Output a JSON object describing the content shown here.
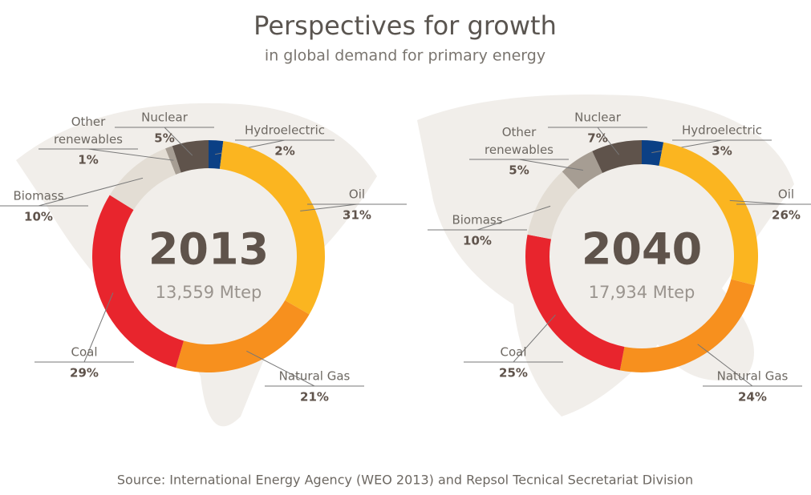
{
  "title": "Perspectives for growth",
  "subtitle": "in global demand for primary energy",
  "source": "Source: International Energy Agency (WEO 2013) and Repsol Tecnical Secretariat Division",
  "chart_data": [
    {
      "type": "pie",
      "donut": true,
      "center_label": "2013",
      "total_label": "13,559 Mtep",
      "categories": [
        "Hydroelectric",
        "Oil",
        "Natural Gas",
        "Coal",
        "Biomass",
        "Other renewables",
        "Nuclear"
      ],
      "values": [
        2,
        31,
        21,
        29,
        10,
        1,
        5
      ],
      "value_labels": [
        "2%",
        "31%",
        "21%",
        "29%",
        "10%",
        "1%",
        "5%"
      ],
      "colors": [
        "#0b4085",
        "#fbb520",
        "#f7901e",
        "#e8252d",
        "#e3ddd4",
        "#a69d93",
        "#5f534b"
      ]
    },
    {
      "type": "pie",
      "donut": true,
      "center_label": "2040",
      "total_label": "17,934 Mtep",
      "categories": [
        "Hydroelectric",
        "Oil",
        "Natural Gas",
        "Coal",
        "Biomass",
        "Other renewables",
        "Nuclear"
      ],
      "values": [
        3,
        26,
        24,
        25,
        10,
        5,
        7
      ],
      "value_labels": [
        "3%",
        "26%",
        "24%",
        "25%",
        "10%",
        "5%",
        "7%"
      ],
      "colors": [
        "#0b4085",
        "#fbb520",
        "#f7901e",
        "#e8252d",
        "#e3ddd4",
        "#a69d93",
        "#5f534b"
      ]
    }
  ]
}
